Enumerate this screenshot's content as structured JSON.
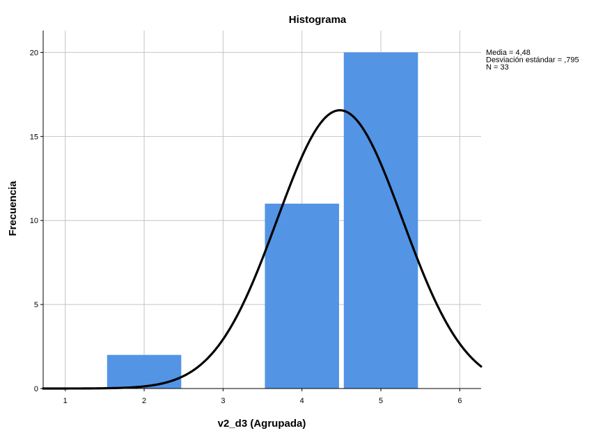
{
  "chart_data": {
    "type": "bar",
    "title": "Histograma",
    "xlabel": "v2_d3 (Agrupada)",
    "ylabel": "Frecuencia",
    "x_ticks": [
      "1",
      "2",
      "3",
      "4",
      "5",
      "6"
    ],
    "y_ticks": [
      "0",
      "5",
      "10",
      "15",
      "20"
    ],
    "xlim": [
      0.72,
      6.27
    ],
    "ylim": [
      0,
      21.3
    ],
    "bars": [
      {
        "x": 2,
        "value": 2
      },
      {
        "x": 4,
        "value": 11
      },
      {
        "x": 5,
        "value": 20
      }
    ],
    "bar_width": 0.94,
    "bar_color": "#5394e4",
    "normal_curve": {
      "mean": 4.48,
      "sd": 0.795,
      "n": 33,
      "bin_width": 1,
      "color": "#000000"
    },
    "grid": true,
    "legend_position": "right",
    "stats": [
      "Media = 4,48",
      "Desviación estándar = ,795",
      "N = 33"
    ]
  }
}
